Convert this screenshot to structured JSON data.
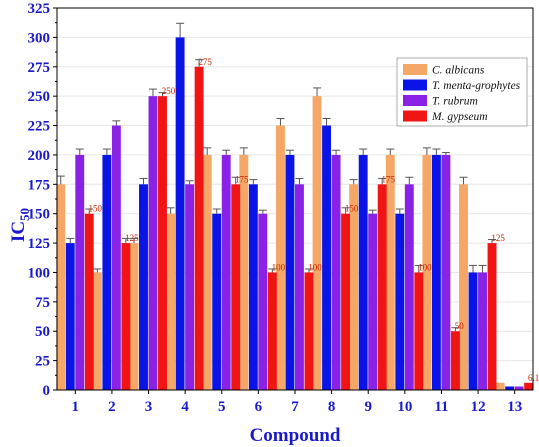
{
  "chart_data": {
    "type": "bar",
    "xlabel": "Compound",
    "ylabel": "IC",
    "ylabel_sub": "50",
    "ylim": [
      0,
      325
    ],
    "yticks": [
      0,
      25,
      50,
      75,
      100,
      125,
      150,
      175,
      200,
      225,
      250,
      275,
      300,
      325
    ],
    "categories": [
      "1",
      "2",
      "3",
      "4",
      "5",
      "6",
      "7",
      "8",
      "9",
      "10",
      "11",
      "12",
      "13"
    ],
    "legend_position": "top-right",
    "series": [
      {
        "name": "C. albicans",
        "color": "#f4a766",
        "values": [
          175,
          100,
          125,
          150,
          200,
          200,
          225,
          250,
          175,
          200,
          200,
          175,
          6.125
        ],
        "errors": [
          7,
          3,
          4,
          5,
          6,
          6,
          6,
          7,
          4,
          5,
          6,
          6,
          0
        ]
      },
      {
        "name": "T. menta-grophytes",
        "color": "#0a14e6",
        "values": [
          125,
          200,
          175,
          300,
          150,
          175,
          200,
          225,
          200,
          150,
          200,
          100,
          3
        ],
        "errors": [
          4,
          5,
          5,
          12,
          4,
          4,
          4,
          6,
          5,
          4,
          5,
          6,
          0
        ]
      },
      {
        "name": "T. rubrum",
        "color": "#8a22e6",
        "values": [
          200,
          225,
          250,
          175,
          200,
          150,
          175,
          200,
          150,
          175,
          200,
          100,
          3
        ],
        "errors": [
          5,
          4,
          6,
          3,
          4,
          3,
          5,
          4,
          3,
          6,
          2,
          6,
          0
        ]
      },
      {
        "name": "M. gypseum",
        "color": "#f01414",
        "values": [
          150,
          125,
          250,
          275,
          175,
          100,
          100,
          150,
          175,
          100,
          50,
          125,
          6.125
        ],
        "errors": [
          4,
          4,
          3,
          6,
          6,
          3,
          3,
          5,
          5,
          6,
          3,
          3,
          0
        ]
      }
    ],
    "data_labels": [
      "150",
      "125",
      "250",
      "275",
      "175",
      "100",
      "100",
      "150",
      "175",
      "100",
      "50",
      "125",
      "6.125"
    ]
  }
}
